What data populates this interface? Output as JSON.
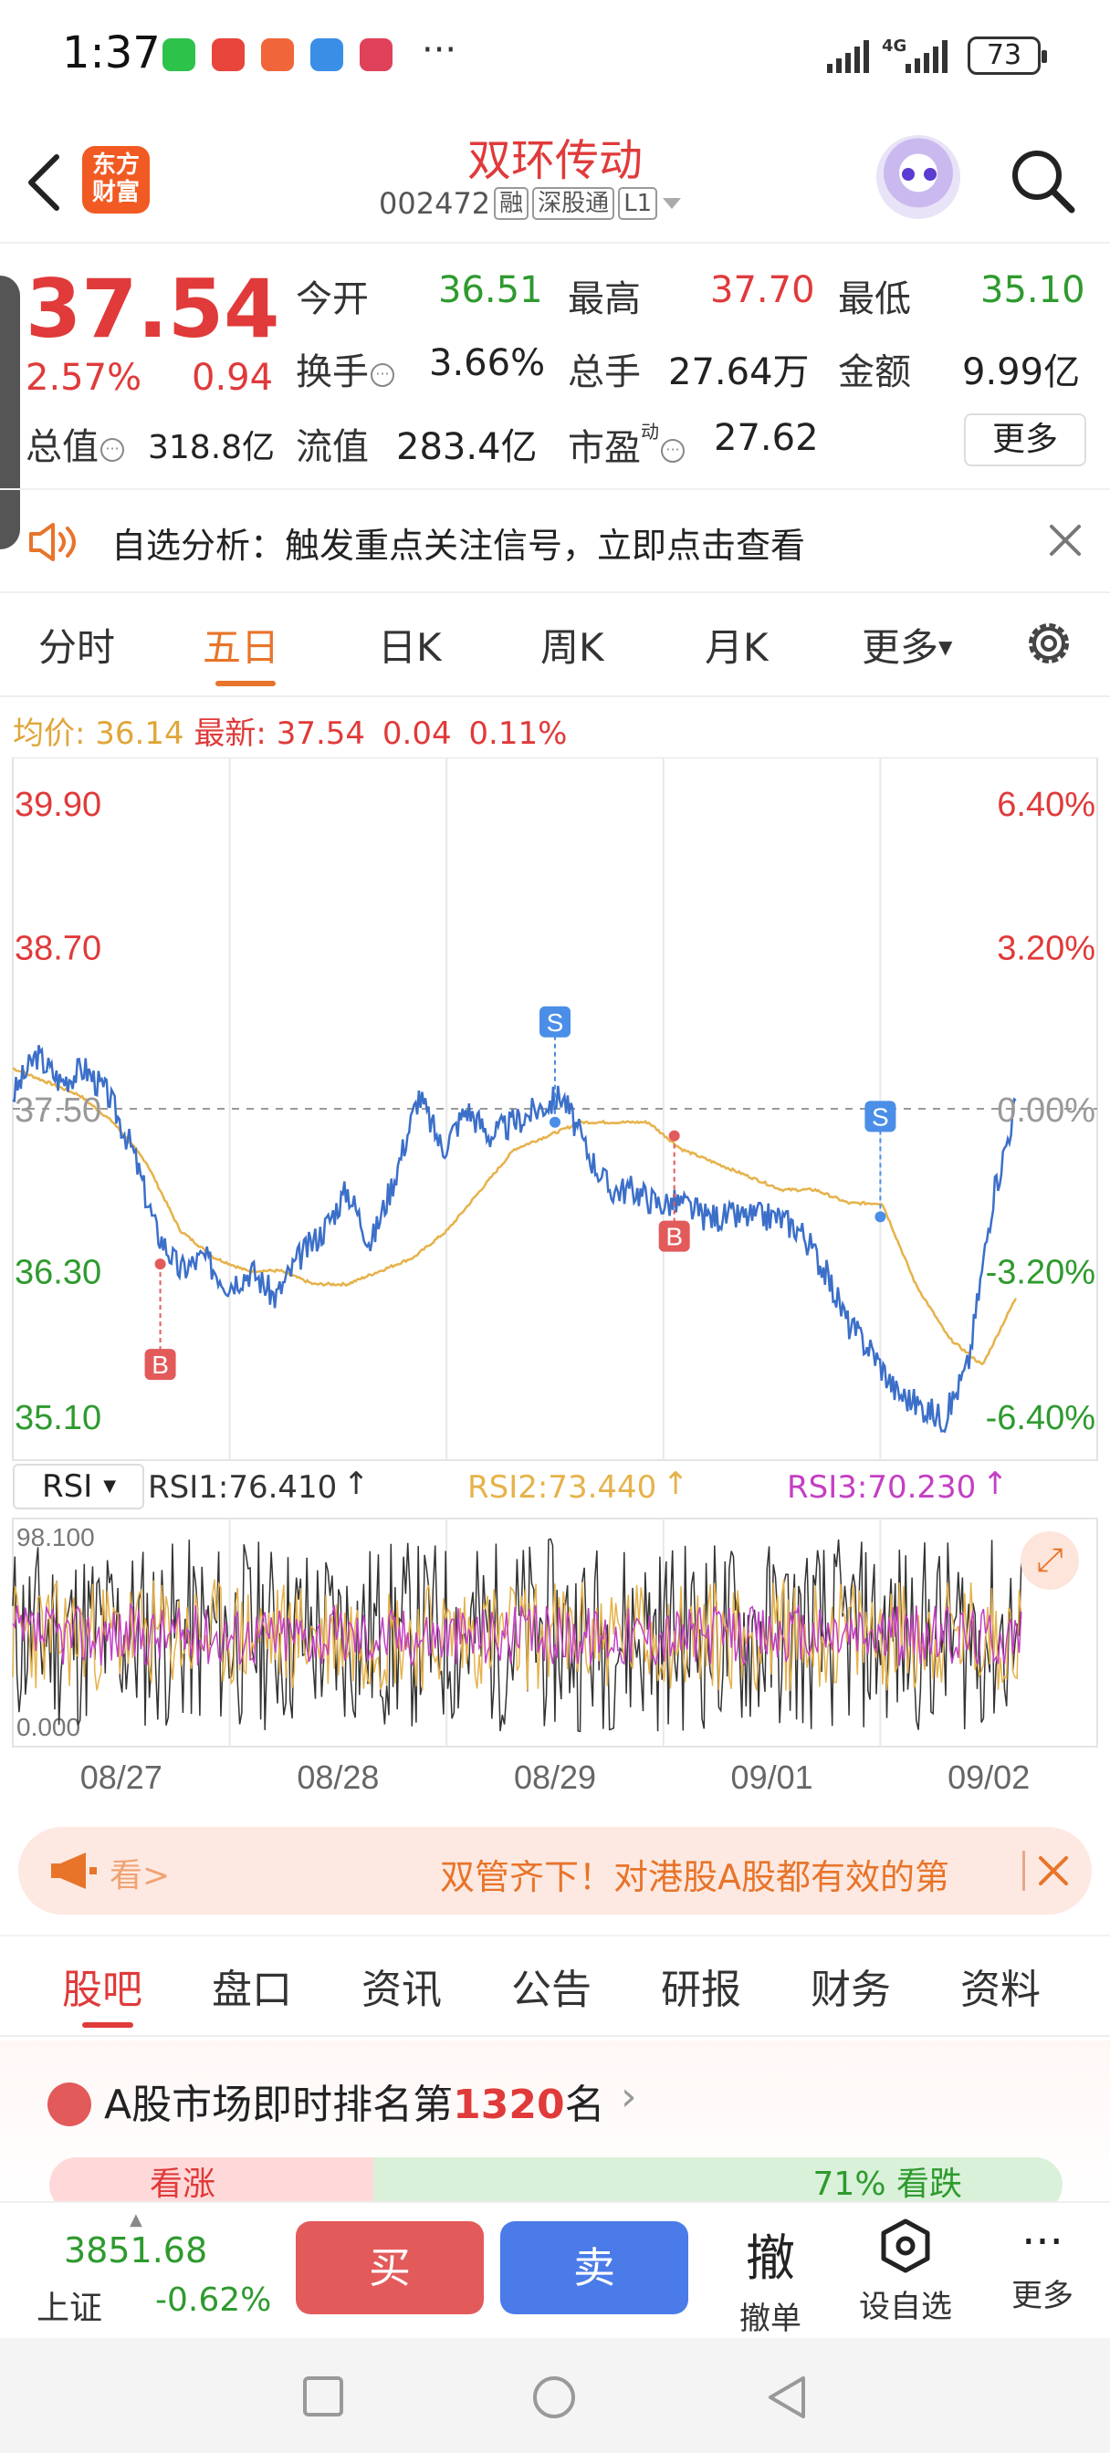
{
  "status_bar": {
    "time": "1:37",
    "more_dots": "···",
    "battery": "73",
    "network": "4G"
  },
  "header": {
    "stock_name": "双环传动",
    "stock_code": "002472",
    "tags": [
      "融",
      "深股通",
      "L1"
    ],
    "logo_line1": "东方",
    "logo_line2": "财富"
  },
  "quote": {
    "price": "37.54",
    "change_pct": "2.57%",
    "change_abs": "0.94",
    "open_label": "今开",
    "open": "36.51",
    "high_label": "最高",
    "high": "37.70",
    "low_label": "最低",
    "low": "35.10",
    "turnover_label": "换手",
    "turnover": "3.66%",
    "volume_label": "总手",
    "volume": "27.64万",
    "amount_label": "金额",
    "amount": "9.99亿",
    "mktcap_label": "总值",
    "mktcap": "318.8亿",
    "float_label": "流值",
    "float_cap": "283.4亿",
    "pe_label": "市盈",
    "pe_sup": "动",
    "pe": "27.62",
    "more": "更多"
  },
  "alert": {
    "text": "自选分析：触发重点关注信号，立即点击查看"
  },
  "chart_tabs": {
    "items": [
      "分时",
      "五日",
      "日K",
      "周K",
      "月K",
      "更多"
    ],
    "active": "五日"
  },
  "avg_row": {
    "avg_label": "均价:",
    "avg": "36.14",
    "latest_label": "最新:",
    "latest": "37.54",
    "delta": "0.04",
    "delta_pct": "0.11%"
  },
  "chart_data": [
    {
      "type": "line",
      "y_left_ticks": [
        "39.90",
        "38.70",
        "37.50",
        "36.30",
        "35.10"
      ],
      "y_right_ticks": [
        "6.40%",
        "3.20%",
        "0.00%",
        "-3.20%",
        "-6.40%"
      ],
      "ylim": [
        35.1,
        39.9
      ],
      "reference": 37.5,
      "days": [
        "08/27",
        "08/28",
        "08/29",
        "09/01",
        "09/02"
      ],
      "series": [
        {
          "name": "price",
          "color": "#3b6fc9",
          "values": [
            37.6,
            37.9,
            37.7,
            37.8,
            37.6,
            37.2,
            36.6,
            36.3,
            36.4,
            36.2,
            36.3,
            36.1,
            36.4,
            36.6,
            36.9,
            36.5,
            37.0,
            37.6,
            37.2,
            37.5,
            37.3,
            37.4,
            37.5,
            37.6,
            37.2,
            36.9,
            36.9,
            36.8,
            36.8,
            36.7,
            36.7,
            36.7,
            36.7,
            36.6,
            36.3,
            35.9,
            35.7,
            35.4,
            35.3,
            35.2,
            35.6,
            36.8,
            37.54
          ]
        },
        {
          "name": "avg",
          "color": "#e6b24a",
          "values": [
            37.8,
            37.7,
            37.6,
            37.4,
            37.1,
            36.6,
            36.4,
            36.3,
            36.3,
            36.2,
            36.2,
            36.3,
            36.4,
            36.6,
            36.9,
            37.2,
            37.3,
            37.4,
            37.4,
            37.4,
            37.2,
            37.1,
            37.0,
            36.9,
            36.9,
            36.8,
            36.8,
            36.2,
            35.8,
            35.6,
            36.1
          ]
        }
      ],
      "markers": [
        {
          "label": "B",
          "day": "08/27",
          "price": 36.35
        },
        {
          "label": "S",
          "day": "08/29",
          "price": 37.4
        },
        {
          "label": "B",
          "day": "09/01",
          "price": 37.3
        },
        {
          "label": "S",
          "day": "09/01",
          "price": 36.7
        }
      ],
      "grid": true
    },
    {
      "type": "line",
      "indicator": "RSI",
      "ylim": [
        0.0,
        98.1
      ],
      "y_ticks": [
        "98.100",
        "0.000"
      ],
      "legend": [
        {
          "name": "RSI1:76.410",
          "color": "#333333"
        },
        {
          "name": "RSI2:73.440",
          "color": "#e6b24a"
        },
        {
          "name": "RSI3:70.230",
          "color": "#c43fc4"
        }
      ],
      "x_ticks": [
        "08/27",
        "08/28",
        "08/29",
        "09/01",
        "09/02"
      ]
    }
  ],
  "rsi_select": "RSI",
  "promo": {
    "see": "看>",
    "text": "双管齐下！对港股A股都有效的第"
  },
  "sec_tabs": {
    "items": [
      "股吧",
      "盘口",
      "资讯",
      "公告",
      "研报",
      "财务",
      "资料"
    ],
    "active": "股吧"
  },
  "rank": {
    "prefix": "A股市场即时排名第",
    "num": "1320",
    "suffix": "名",
    "up_label": "看涨",
    "down_label": "71% 看跌"
  },
  "trade_bar": {
    "index_value": "3851.68",
    "index_name": "上证",
    "index_change": "-0.62%",
    "buy": "买",
    "sell": "卖",
    "cancel_icon": "撤",
    "cancel": "撤单",
    "watch": "设自选",
    "more": "更多"
  },
  "colors": {
    "up": "#e03a3a",
    "down": "#2e9a2e",
    "accent": "#e8742a",
    "price_line": "#3b6fc9",
    "avg_line": "#e6b24a"
  }
}
